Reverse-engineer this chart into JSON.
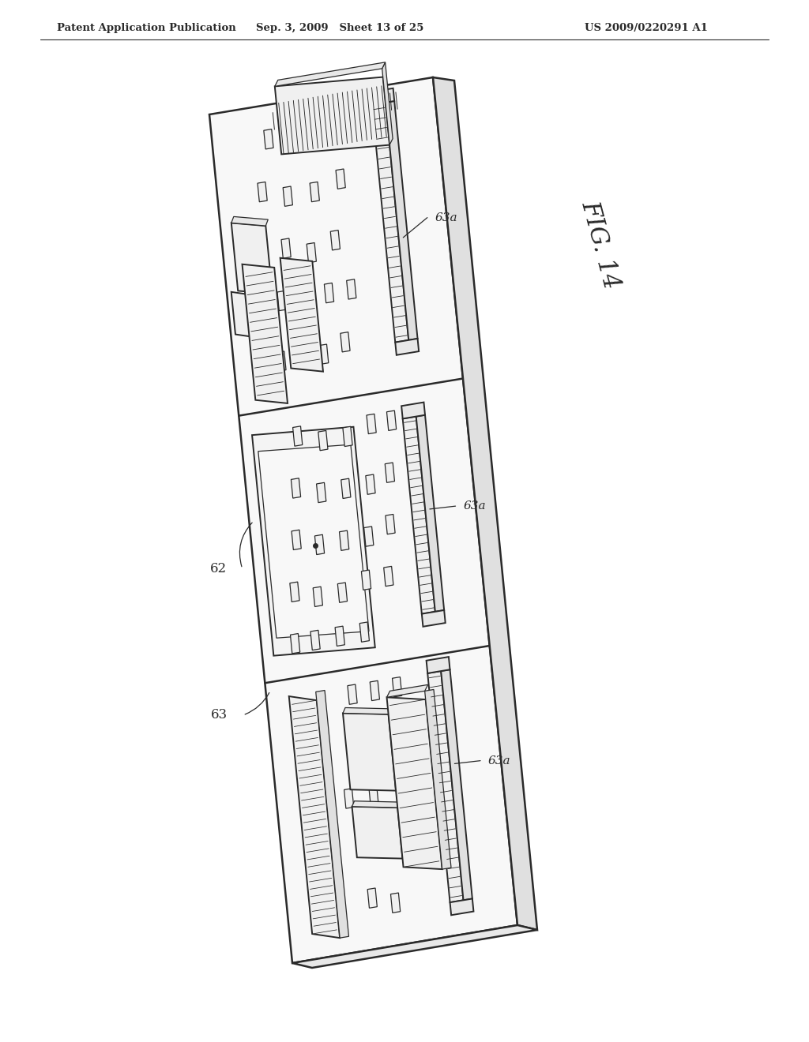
{
  "bg_color": "#ffffff",
  "line_color": "#2a2a2a",
  "header_left": "Patent Application Publication",
  "header_center": "Sep. 3, 2009   Sheet 13 of 25",
  "header_right": "US 2009/0220291 A1"
}
